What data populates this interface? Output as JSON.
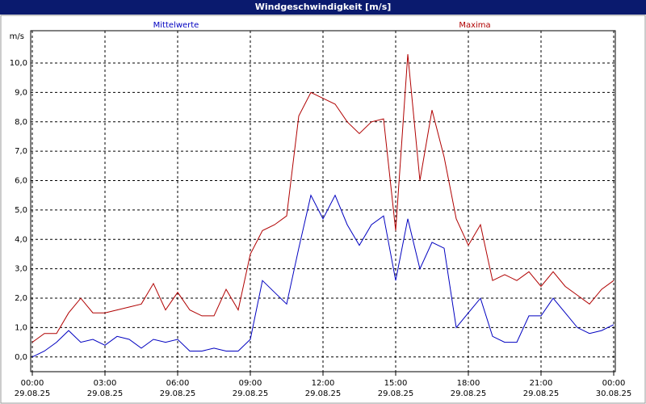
{
  "chart_data": {
    "type": "line",
    "title": "Windgeschwindigkeit [m/s]",
    "ylabel": "m/s",
    "x": [
      0,
      0.5,
      1,
      1.5,
      2,
      2.5,
      3,
      3.5,
      4,
      4.5,
      5,
      5.5,
      6,
      6.5,
      7,
      7.5,
      8,
      8.5,
      9,
      9.5,
      10,
      10.5,
      11,
      11.5,
      12,
      12.5,
      13,
      13.5,
      14,
      14.5,
      15,
      15.5,
      16,
      16.5,
      17,
      17.5,
      18,
      18.5,
      19,
      19.5,
      20,
      20.5,
      21,
      21.5,
      22,
      22.5,
      23,
      23.5,
      24
    ],
    "series": [
      {
        "name": "Mittelwerte",
        "color": "#0000c0",
        "values": [
          0.0,
          0.2,
          0.5,
          0.9,
          0.5,
          0.6,
          0.4,
          0.7,
          0.6,
          0.3,
          0.6,
          0.5,
          0.6,
          0.2,
          0.2,
          0.3,
          0.2,
          0.2,
          0.6,
          2.6,
          2.2,
          1.8,
          3.7,
          5.5,
          4.7,
          5.5,
          4.5,
          3.8,
          4.5,
          4.8,
          2.6,
          4.7,
          3.0,
          3.9,
          3.7,
          1.0,
          1.5,
          2.0,
          0.7,
          0.5,
          0.5,
          1.4,
          1.4,
          2.0,
          1.5,
          1.0,
          0.8,
          0.9,
          1.1
        ]
      },
      {
        "name": "Maxima",
        "color": "#b00000",
        "values": [
          0.5,
          0.8,
          0.8,
          1.5,
          2.0,
          1.5,
          1.5,
          1.6,
          1.7,
          1.8,
          2.5,
          1.6,
          2.2,
          1.6,
          1.4,
          1.4,
          2.3,
          1.6,
          3.5,
          4.3,
          4.5,
          4.8,
          8.2,
          9.0,
          8.8,
          8.6,
          8.0,
          7.6,
          8.0,
          8.1,
          4.3,
          10.3,
          6.0,
          8.4,
          6.8,
          4.7,
          3.8,
          4.5,
          2.6,
          2.8,
          2.6,
          2.9,
          2.4,
          2.9,
          2.4,
          2.1,
          1.8,
          2.3,
          2.6
        ]
      }
    ],
    "xlim": [
      0,
      24
    ],
    "xticks": [
      {
        "value": 0,
        "label": "00:00\n29.08.25"
      },
      {
        "value": 3,
        "label": "03:00\n29.08.25"
      },
      {
        "value": 6,
        "label": "06:00\n29.08.25"
      },
      {
        "value": 9,
        "label": "09:00\n29.08.25"
      },
      {
        "value": 12,
        "label": "12:00\n29.08.25"
      },
      {
        "value": 15,
        "label": "15:00\n29.08.25"
      },
      {
        "value": 18,
        "label": "18:00\n29.08.25"
      },
      {
        "value": 21,
        "label": "21:00\n29.08.25"
      },
      {
        "value": 24,
        "label": "00:00\n30.08.25"
      }
    ],
    "ylim": [
      -0.5,
      11.1
    ],
    "yticks": [
      {
        "value": 0,
        "label": "0,0"
      },
      {
        "value": 1,
        "label": "1,0"
      },
      {
        "value": 2,
        "label": "2,0"
      },
      {
        "value": 3,
        "label": "3,0"
      },
      {
        "value": 4,
        "label": "4,0"
      },
      {
        "value": 5,
        "label": "5,0"
      },
      {
        "value": 6,
        "label": "6,0"
      },
      {
        "value": 7,
        "label": "7,0"
      },
      {
        "value": 8,
        "label": "8,0"
      },
      {
        "value": 9,
        "label": "9,0"
      },
      {
        "value": 10,
        "label": "10,0"
      }
    ],
    "grid": true
  }
}
